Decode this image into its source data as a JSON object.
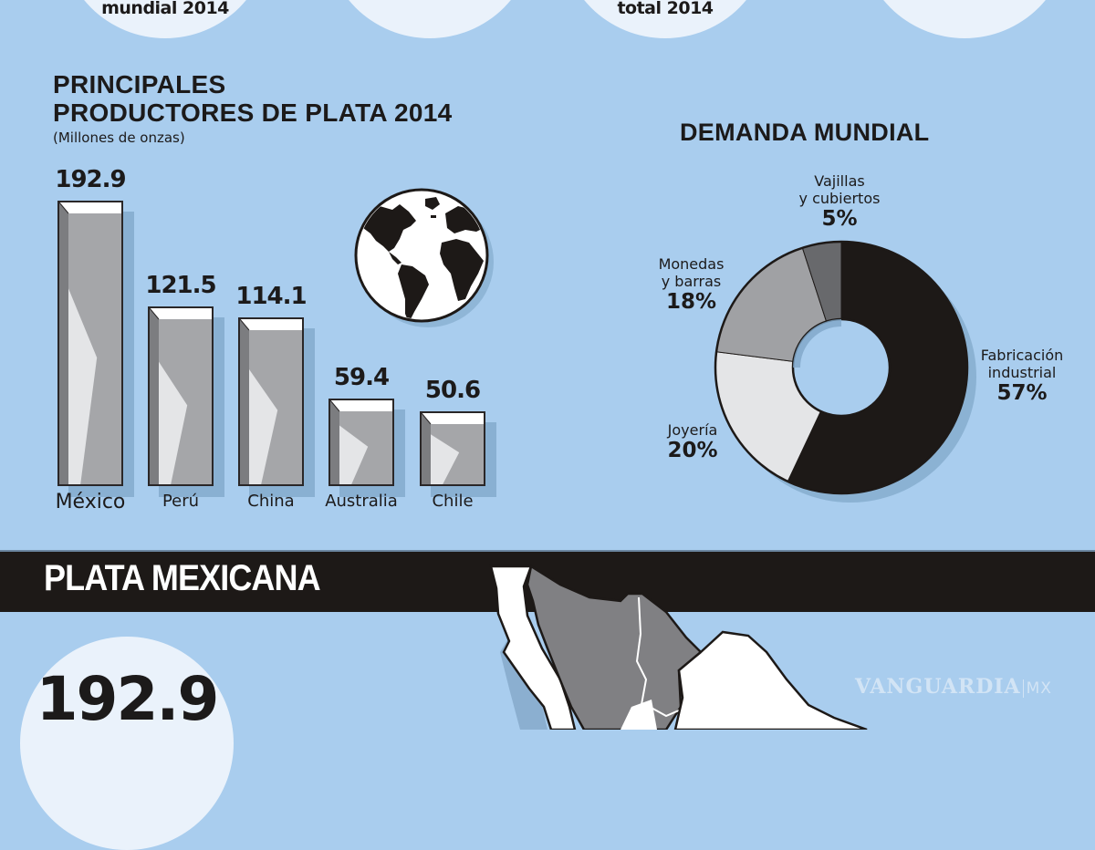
{
  "top_circles": [
    {
      "text": "mundial 2014"
    },
    {
      "text": ""
    },
    {
      "text": "total 2014"
    },
    {
      "text": ""
    }
  ],
  "producers": {
    "title_line1": "PRINCIPALES",
    "title_line2": "PRODUCTORES DE PLATA 2014",
    "subtitle": "(Millones de onzas)",
    "globe_icon": "globe-icon"
  },
  "demand": {
    "title": "DEMANDA MUNDIAL",
    "segments": [
      {
        "label_line1": "Fabricación",
        "label_line2": "industrial",
        "pct": "57%"
      },
      {
        "label_line1": "Joyería",
        "label_line2": "",
        "pct": "20%"
      },
      {
        "label_line1": "Monedas",
        "label_line2": "y barras",
        "pct": "18%"
      },
      {
        "label_line1": "Vajillas",
        "label_line2": "y cubiertos",
        "pct": "5%"
      }
    ]
  },
  "section": {
    "title": "PLATA MEXICANA",
    "stat_value": "192.9",
    "map_icon": "mexico-map-icon"
  },
  "watermark": {
    "brand": "VANGUARDIA",
    "suffix": "MX"
  },
  "colors": {
    "background": "#a9cdee",
    "bar_face": "#a5a6a9",
    "bar_light": "#e4e5e7",
    "bar_dark": "#7c7d80",
    "donut_industrial": "#1d1917",
    "donut_jewelry": "#e4e5e7",
    "donut_coins": "#a0a1a4",
    "donut_tableware": "#68696c",
    "band": "#1d1917"
  },
  "chart_data": [
    {
      "type": "bar",
      "title": "PRINCIPALES PRODUCTORES DE PLATA 2014",
      "subtitle": "(Millones de onzas)",
      "categories": [
        "México",
        "Perú",
        "China",
        "Australia",
        "Chile"
      ],
      "values": [
        192.9,
        121.5,
        114.1,
        59.4,
        50.6
      ],
      "xlabel": "",
      "ylabel": "Millones de onzas",
      "grid": false,
      "legend": "none"
    },
    {
      "type": "pie",
      "title": "DEMANDA MUNDIAL",
      "variant": "donut",
      "categories": [
        "Fabricación industrial",
        "Joyería",
        "Monedas y barras",
        "Vajillas y cubiertos"
      ],
      "values": [
        57,
        20,
        18,
        5
      ],
      "unit": "%"
    }
  ]
}
